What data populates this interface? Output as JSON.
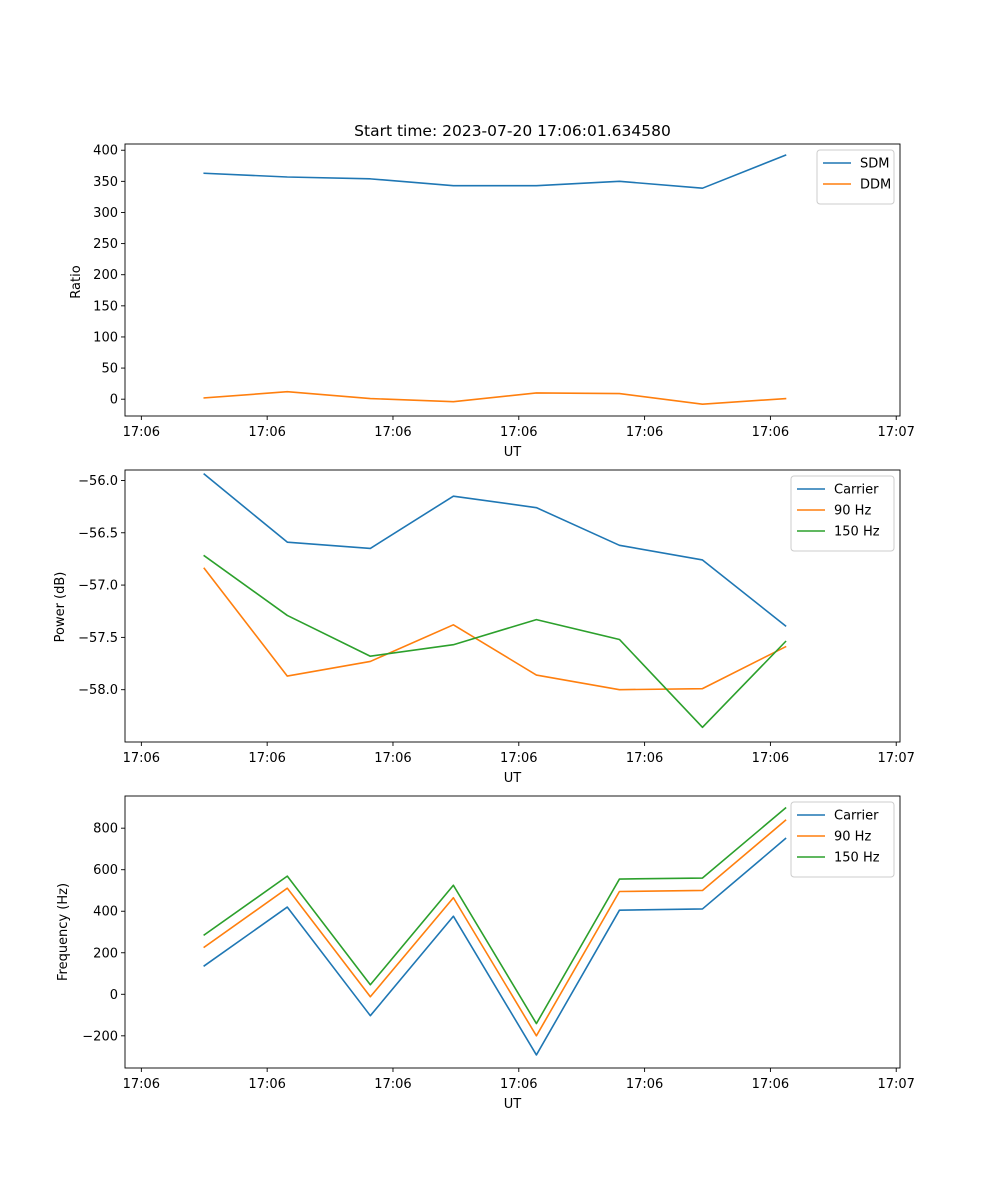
{
  "chart_data": [
    {
      "type": "line",
      "title": "Start time: 2023-07-20 17:06:01.634580",
      "xlabel": "UT",
      "ylabel": "Ratio",
      "x_tick_labels": [
        "17:06",
        "17:06",
        "17:06",
        "17:06",
        "17:06",
        "17:06",
        "17:07"
      ],
      "xlim": [
        -0.13,
        6.03
      ],
      "ylim": [
        -27,
        410
      ],
      "yticks": [
        0,
        50,
        100,
        150,
        200,
        250,
        300,
        350,
        400
      ],
      "ytick_labels": [
        "0",
        "50",
        "100",
        "150",
        "200",
        "250",
        "300",
        "350",
        "400"
      ],
      "x": [
        0.5,
        1.16,
        1.82,
        2.48,
        3.14,
        3.8,
        4.46,
        5.12
      ],
      "legend_position": "upper right",
      "series": [
        {
          "name": "SDM",
          "color": "#1f77b4",
          "values": [
            363,
            357,
            354,
            343,
            343,
            350,
            339,
            392
          ]
        },
        {
          "name": "DDM",
          "color": "#ff7f0e",
          "values": [
            2,
            12,
            1,
            -4,
            10,
            9,
            -8,
            1
          ]
        }
      ]
    },
    {
      "type": "line",
      "title": "",
      "xlabel": "UT",
      "ylabel": "Power (dB)",
      "x_tick_labels": [
        "17:06",
        "17:06",
        "17:06",
        "17:06",
        "17:06",
        "17:06",
        "17:07"
      ],
      "xlim": [
        -0.13,
        6.03
      ],
      "ylim": [
        -58.5,
        -55.9
      ],
      "yticks": [
        -58.0,
        -57.5,
        -57.0,
        -56.5,
        -56.0
      ],
      "ytick_labels": [
        "−58.0",
        "−57.5",
        "−57.0",
        "−56.5",
        "−56.0"
      ],
      "x": [
        0.5,
        1.16,
        1.82,
        2.48,
        3.14,
        3.8,
        4.46,
        5.12
      ],
      "legend_position": "upper right",
      "series": [
        {
          "name": "Carrier",
          "color": "#1f77b4",
          "values": [
            -55.94,
            -56.59,
            -56.65,
            -56.15,
            -56.26,
            -56.62,
            -56.76,
            -57.39
          ]
        },
        {
          "name": "90 Hz",
          "color": "#ff7f0e",
          "values": [
            -56.84,
            -57.87,
            -57.73,
            -57.38,
            -57.86,
            -58.0,
            -57.99,
            -57.59
          ]
        },
        {
          "name": "150 Hz",
          "color": "#2ca02c",
          "values": [
            -56.72,
            -57.29,
            -57.68,
            -57.57,
            -57.33,
            -57.52,
            -58.36,
            -57.54
          ]
        }
      ]
    },
    {
      "type": "line",
      "title": "",
      "xlabel": "UT",
      "ylabel": "Frequency (Hz)",
      "x_tick_labels": [
        "17:06",
        "17:06",
        "17:06",
        "17:06",
        "17:06",
        "17:06",
        "17:07"
      ],
      "xlim": [
        -0.13,
        6.03
      ],
      "ylim": [
        -355,
        955
      ],
      "yticks": [
        -200,
        0,
        200,
        400,
        600,
        800
      ],
      "ytick_labels": [
        "−200",
        "0",
        "200",
        "400",
        "600",
        "800"
      ],
      "x": [
        0.5,
        1.16,
        1.82,
        2.48,
        3.14,
        3.8,
        4.46,
        5.12
      ],
      "legend_position": "upper right",
      "series": [
        {
          "name": "Carrier",
          "color": "#1f77b4",
          "values": [
            137,
            420,
            -103,
            376,
            -292,
            405,
            411,
            750
          ]
        },
        {
          "name": "90 Hz",
          "color": "#ff7f0e",
          "values": [
            227,
            511,
            -12,
            465,
            -200,
            495,
            500,
            838
          ]
        },
        {
          "name": "150 Hz",
          "color": "#2ca02c",
          "values": [
            286,
            569,
            46,
            525,
            -141,
            555,
            560,
            897
          ]
        }
      ]
    }
  ]
}
